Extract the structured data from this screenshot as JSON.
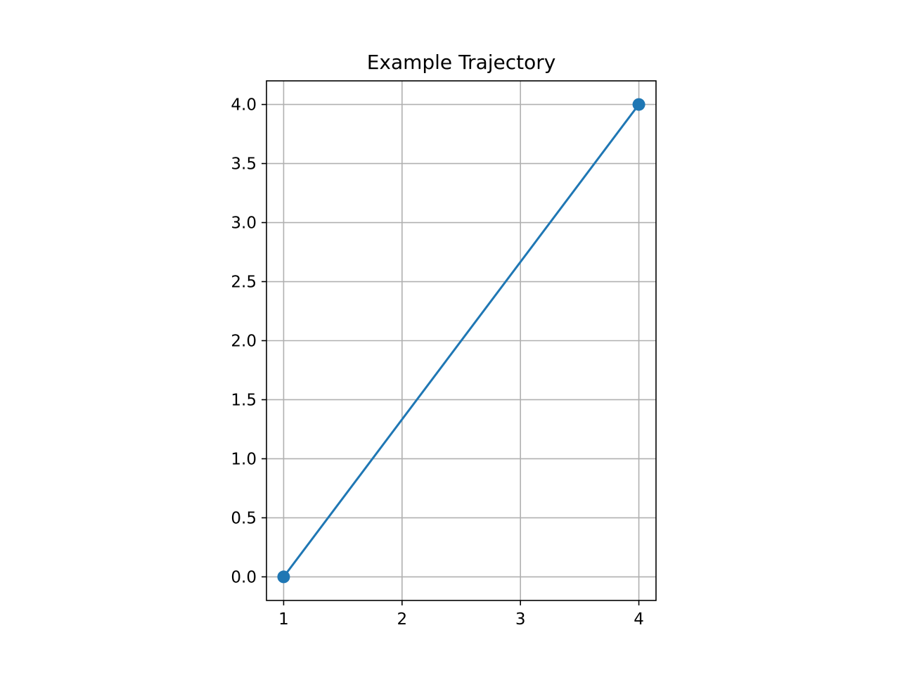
{
  "chart_data": {
    "type": "line",
    "title": "Example Trajectory",
    "xlabel": "",
    "ylabel": "",
    "xlim": [
      0.855,
      4.145
    ],
    "ylim": [
      -0.2,
      4.2
    ],
    "xticks": [
      1,
      2,
      3,
      4
    ],
    "xtick_labels": [
      "1",
      "2",
      "3",
      "4"
    ],
    "yticks": [
      0.0,
      0.5,
      1.0,
      1.5,
      2.0,
      2.5,
      3.0,
      3.5,
      4.0
    ],
    "ytick_labels": [
      "0.0",
      "0.5",
      "1.0",
      "1.5",
      "2.0",
      "2.5",
      "3.0",
      "3.5",
      "4.0"
    ],
    "grid": true,
    "series": [
      {
        "x": [
          1,
          4
        ],
        "y": [
          0,
          4
        ],
        "marker": "circle",
        "color": "#1f77b4"
      }
    ]
  },
  "colors": {
    "line": "#1f77b4",
    "grid": "#b0b0b0",
    "axes": "#000000"
  }
}
